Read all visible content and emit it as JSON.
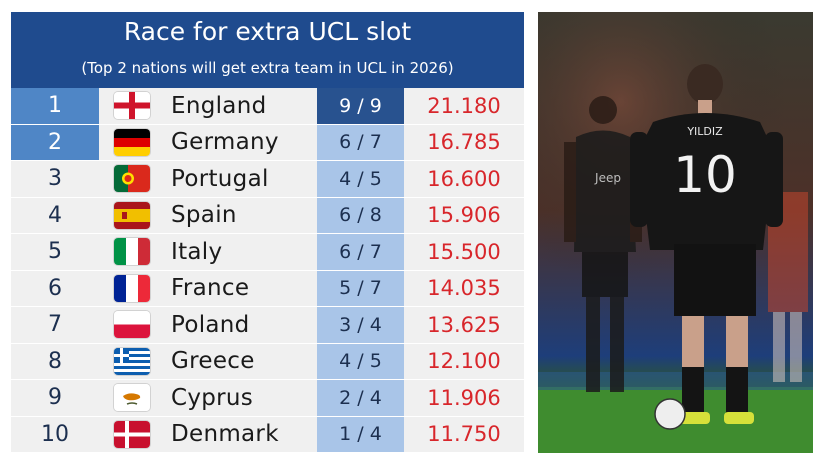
{
  "table": {
    "title": "Race for extra UCL slot",
    "subtitle": "(Top 2 nations will get extra team in UCL in 2026)",
    "rows": [
      {
        "rank": "1",
        "flag_icon": "england-flag-icon",
        "country": "England",
        "clubs": "9 / 9",
        "points": "21.180"
      },
      {
        "rank": "2",
        "flag_icon": "germany-flag-icon",
        "country": "Germany",
        "clubs": "6 / 7",
        "points": "16.785"
      },
      {
        "rank": "3",
        "flag_icon": "portugal-flag-icon",
        "country": "Portugal",
        "clubs": "4 / 5",
        "points": "16.600"
      },
      {
        "rank": "4",
        "flag_icon": "spain-flag-icon",
        "country": "Spain",
        "clubs": "6 / 8",
        "points": "15.906"
      },
      {
        "rank": "5",
        "flag_icon": "italy-flag-icon",
        "country": "Italy",
        "clubs": "6 / 7",
        "points": "15.500"
      },
      {
        "rank": "6",
        "flag_icon": "france-flag-icon",
        "country": "France",
        "clubs": "5 / 7",
        "points": "14.035"
      },
      {
        "rank": "7",
        "flag_icon": "poland-flag-icon",
        "country": "Poland",
        "clubs": "3 / 4",
        "points": "13.625"
      },
      {
        "rank": "8",
        "flag_icon": "greece-flag-icon",
        "country": "Greece",
        "clubs": "4 / 5",
        "points": "12.100"
      },
      {
        "rank": "9",
        "flag_icon": "cyprus-flag-icon",
        "country": "Cyprus",
        "clubs": "2 / 4",
        "points": "11.906"
      },
      {
        "rank": "10",
        "flag_icon": "denmark-flag-icon",
        "country": "Denmark",
        "clubs": "1 / 4",
        "points": "11.750"
      }
    ]
  },
  "photo": {
    "jersey_name": "YILDIZ",
    "jersey_number": "10",
    "sponsor": "Jeep"
  },
  "colors": {
    "header": "#1f4b8e",
    "highlight": "#4f86c6",
    "clubs_cell": "#a9c5e8",
    "points_text": "#d8262b",
    "row_bg": "#f0f0f0"
  }
}
